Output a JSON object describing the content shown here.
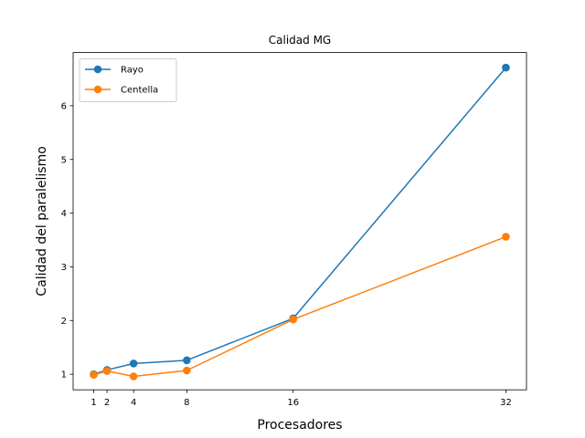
{
  "chart_data": {
    "type": "line",
    "title": "Calidad MG",
    "xlabel": "Procesadores",
    "ylabel": "Calidad del paralelismo",
    "x": [
      1,
      2,
      4,
      8,
      16,
      32
    ],
    "xticks": [
      "1",
      "2",
      "4",
      "8",
      "16",
      "32"
    ],
    "yticks": [
      "1",
      "2",
      "3",
      "4",
      "5",
      "6"
    ],
    "xlim": [
      -0.55,
      33.55
    ],
    "ylim": [
      0.71,
      6.99
    ],
    "grid": false,
    "legend_position": "top-left",
    "series": [
      {
        "name": "Rayo",
        "color": "#1f77b4",
        "values": [
          1.0,
          1.08,
          1.2,
          1.26,
          2.04,
          6.71
        ]
      },
      {
        "name": "Centella",
        "color": "#ff7f0e",
        "values": [
          0.99,
          1.06,
          0.96,
          1.07,
          2.02,
          3.56
        ]
      }
    ]
  }
}
